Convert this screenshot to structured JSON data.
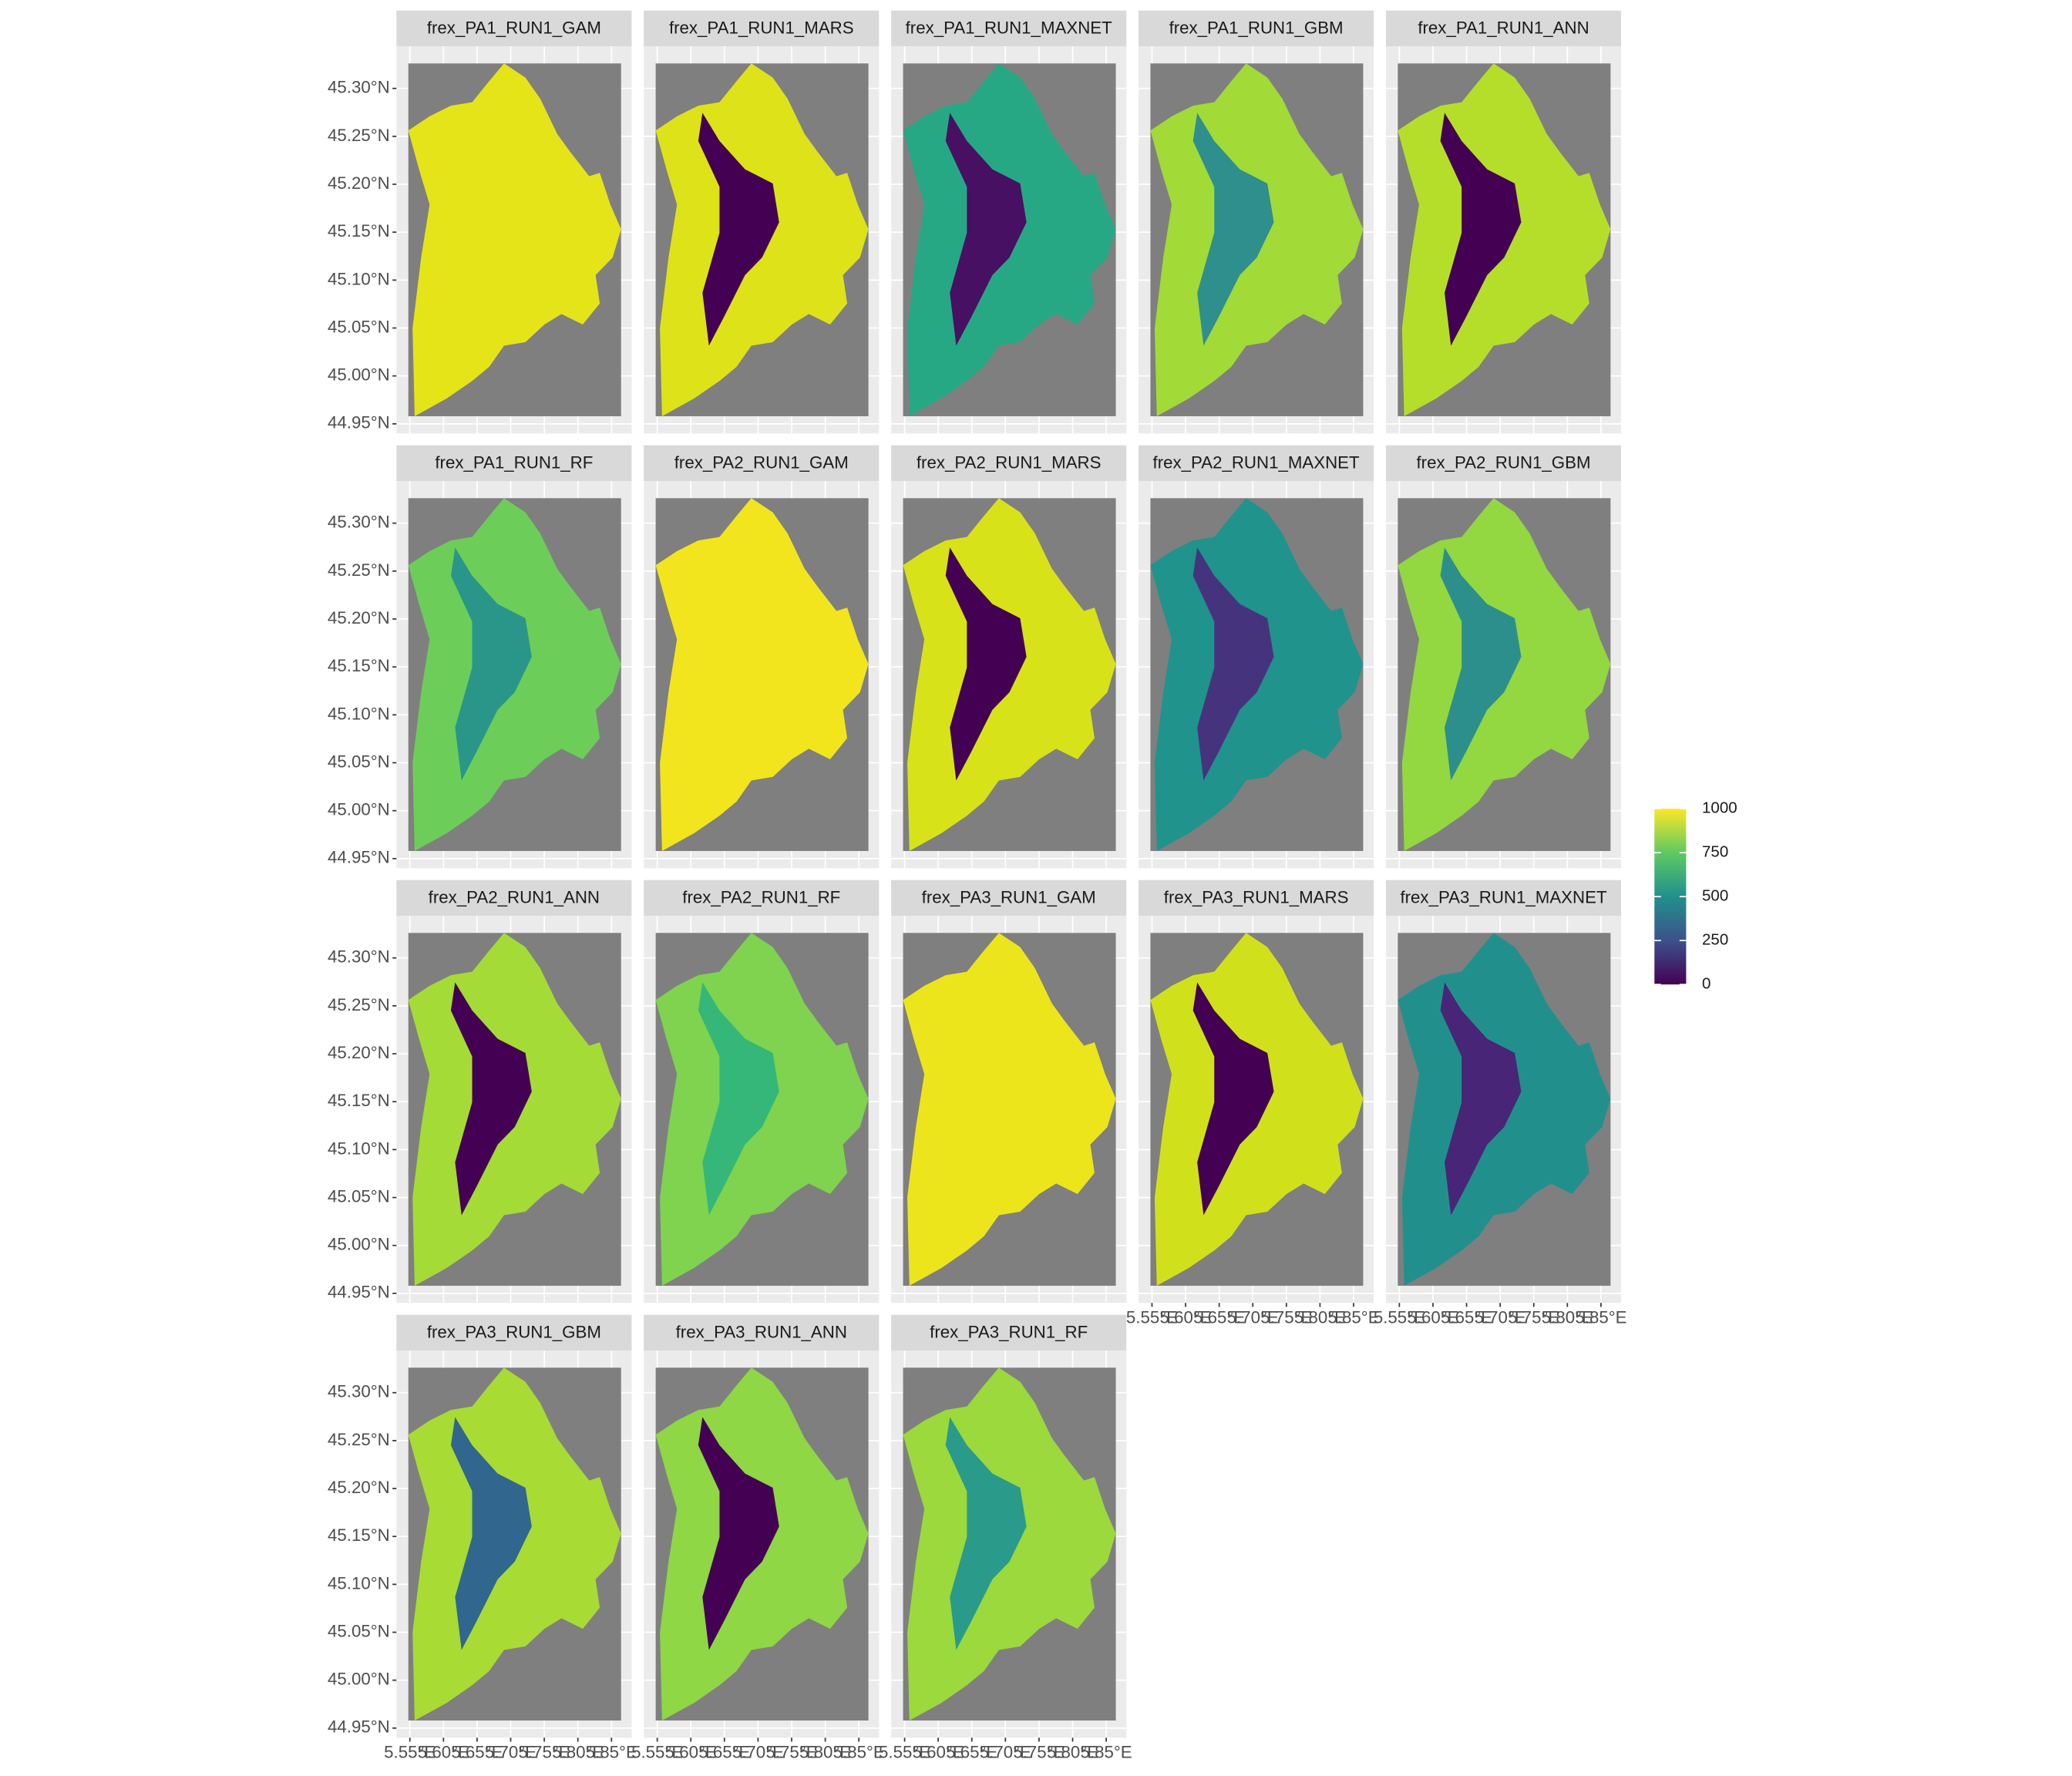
{
  "chart_data": {
    "type": "map-facets",
    "ylim": [
      44.94,
      45.344
    ],
    "yticks": [
      {
        "value": 44.95,
        "label": "44.95°N"
      },
      {
        "value": 45.0,
        "label": "45.00°N"
      },
      {
        "value": 45.05,
        "label": "45.05°N"
      },
      {
        "value": 45.1,
        "label": "45.10°N"
      },
      {
        "value": 45.15,
        "label": "45.15°N"
      },
      {
        "value": 45.2,
        "label": "45.20°N"
      },
      {
        "value": 45.25,
        "label": "45.25°N"
      },
      {
        "value": 45.3,
        "label": "45.30°N"
      }
    ],
    "xlim": [
      5.53,
      5.88
    ],
    "xticks": [
      {
        "value": 5.55,
        "label": "5.55°E"
      },
      {
        "value": 5.6,
        "label": "5.60°E"
      },
      {
        "value": 5.65,
        "label": "5.65°E"
      },
      {
        "value": 5.7,
        "label": "5.70°E"
      },
      {
        "value": 5.75,
        "label": "5.75°E"
      },
      {
        "value": 5.8,
        "label": "5.80°E"
      },
      {
        "value": 5.85,
        "label": "5.85°E"
      }
    ],
    "grid": true,
    "panels": [
      {
        "title": "frex_PA1_RUN1_GAM",
        "color": "#e5e419"
      },
      {
        "title": "frex_PA1_RUN1_MARS",
        "color": "#dde318",
        "core": "#440154"
      },
      {
        "title": "frex_PA1_RUN1_MAXNET",
        "color": "#27a884",
        "core": "#471063"
      },
      {
        "title": "frex_PA1_RUN1_GBM",
        "color": "#a2da37",
        "core": "#2f8f8c"
      },
      {
        "title": "frex_PA1_RUN1_ANN",
        "color": "#b5de2b",
        "core": "#440154"
      },
      {
        "title": "frex_PA1_RUN1_RF",
        "color": "#6cce59",
        "core": "#2a9689"
      },
      {
        "title": "frex_PA2_RUN1_GAM",
        "color": "#f2e51d"
      },
      {
        "title": "frex_PA2_RUN1_MARS",
        "color": "#d8e219",
        "core": "#440154"
      },
      {
        "title": "frex_PA2_RUN1_MAXNET",
        "color": "#20938c",
        "core": "#46337e"
      },
      {
        "title": "frex_PA2_RUN1_GBM",
        "color": "#93d741",
        "core": "#2c8f8c"
      },
      {
        "title": "frex_PA2_RUN1_ANN",
        "color": "#a5db36",
        "core": "#440154"
      },
      {
        "title": "frex_PA2_RUN1_RF",
        "color": "#7fd34e",
        "core": "#35b779"
      },
      {
        "title": "frex_PA3_RUN1_GAM",
        "color": "#ede51b"
      },
      {
        "title": "frex_PA3_RUN1_MARS",
        "color": "#d0e11c",
        "core": "#440154"
      },
      {
        "title": "frex_PA3_RUN1_MAXNET",
        "color": "#21908d",
        "core": "#482576"
      },
      {
        "title": "frex_PA3_RUN1_GBM",
        "color": "#a8db34",
        "core": "#31668e"
      },
      {
        "title": "frex_PA3_RUN1_ANN",
        "color": "#8fd744",
        "core": "#440154"
      },
      {
        "title": "frex_PA3_RUN1_RF",
        "color": "#9bd93c",
        "core": "#2a9a8a"
      }
    ],
    "legend": {
      "limits": [
        0,
        1000
      ],
      "ticks": [
        0,
        250,
        500,
        750,
        1000
      ],
      "colors": [
        "#440154",
        "#3b528b",
        "#21918c",
        "#5ec962",
        "#fde725"
      ]
    }
  }
}
